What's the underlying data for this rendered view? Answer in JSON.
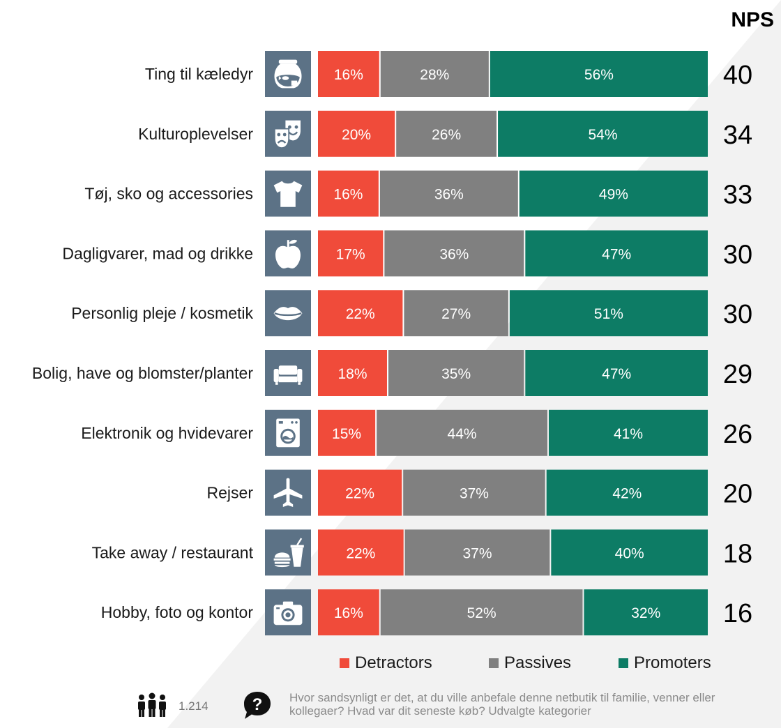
{
  "nps_header": "NPS",
  "chart_data": {
    "type": "bar",
    "orientation": "horizontal",
    "stacked": true,
    "categories": [
      "Ting til kæledyr",
      "Kulturoplevelser",
      "Tøj, sko og accessories",
      "Dagligvarer, mad og drikke",
      "Personlig pleje / kosmetik",
      "Bolig, have og blomster/planter",
      "Elektronik og hvidevarer",
      "Rejser",
      "Take away / restaurant",
      "Hobby, foto og kontor"
    ],
    "icons": [
      "fishbowl-icon",
      "theater-masks-icon",
      "tshirt-icon",
      "apple-icon",
      "lips-icon",
      "sofa-icon",
      "washing-machine-icon",
      "airplane-icon",
      "fastfood-icon",
      "camera-icon"
    ],
    "series": [
      {
        "name": "Detractors",
        "color": "#f04b3a",
        "values": [
          16,
          20,
          16,
          17,
          22,
          18,
          15,
          22,
          22,
          16
        ]
      },
      {
        "name": "Passives",
        "color": "#808080",
        "values": [
          28,
          26,
          36,
          36,
          27,
          35,
          44,
          37,
          37,
          52
        ]
      },
      {
        "name": "Promoters",
        "color": "#0d7c65",
        "values": [
          56,
          54,
          49,
          47,
          51,
          47,
          41,
          42,
          40,
          32
        ]
      }
    ],
    "labels": [
      [
        "16%",
        "28%",
        "56%"
      ],
      [
        "20%",
        "26%",
        "54%"
      ],
      [
        "16%",
        "36%",
        "49%"
      ],
      [
        "17%",
        "36%",
        "47%"
      ],
      [
        "22%",
        "27%",
        "51%"
      ],
      [
        "18%",
        "35%",
        "47%"
      ],
      [
        "15%",
        "44%",
        "41%"
      ],
      [
        "22%",
        "37%",
        "42%"
      ],
      [
        "22%",
        "37%",
        "40%"
      ],
      [
        "16%",
        "52%",
        "32%"
      ]
    ],
    "nps": [
      "40",
      "34",
      "33",
      "30",
      "30",
      "29",
      "26",
      "20",
      "18",
      "16"
    ],
    "icon_bg": "#5c7286",
    "legend_position": "bottom",
    "grid": false
  },
  "footer": {
    "sample_size": "1.214",
    "question": "Hvor sandsynligt er det, at du ville anbefale denne netbutik til familie, venner eller kollegaer? Hvad var dit seneste køb? Udvalgte kategorier"
  }
}
